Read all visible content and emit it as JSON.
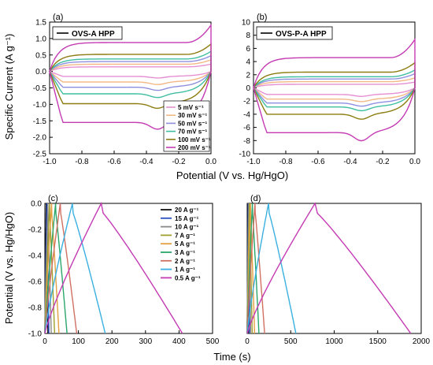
{
  "figure": {
    "shared_ylabel_top": "Specific Current (A g⁻¹)",
    "shared_xlabel_top": "Potential (V vs. Hg/HgO)",
    "shared_ylabel_bottom": "Potential (V vs. Hg/HgO)",
    "shared_xlabel_bottom": "Time (s)"
  },
  "chart_data": [
    {
      "panel": "(a)",
      "type": "line",
      "title_legend": "OVS-A HPP",
      "xlim": [
        -1.0,
        0.0
      ],
      "ylim": [
        -2.5,
        1.5
      ],
      "xticks": [
        "-1.0",
        "-0.8",
        "-0.6",
        "-0.4",
        "-0.2",
        "0.0"
      ],
      "yticks": [
        "-2.5",
        "-2.0",
        "-1.5",
        "-1.0",
        "-0.5",
        "0.0",
        "0.5",
        "1.0",
        "1.5"
      ],
      "series": [
        {
          "name": "5 mV s⁻¹",
          "color": "#e58fd2",
          "anodic": 0.14,
          "cathodic": -0.15,
          "dip": 0.05
        },
        {
          "name": "30 mV s⁻¹",
          "color": "#f2b886",
          "anodic": 0.22,
          "cathodic": -0.32,
          "dip": 0.08
        },
        {
          "name": "50 mV s⁻¹",
          "color": "#8f8fe0",
          "anodic": 0.3,
          "cathodic": -0.48,
          "dip": 0.1
        },
        {
          "name": "70 mV s⁻¹",
          "color": "#3fbfa0",
          "anodic": 0.38,
          "cathodic": -0.68,
          "dip": 0.12
        },
        {
          "name": "100 mV s⁻¹",
          "color": "#8c7d12",
          "anodic": 0.52,
          "cathodic": -0.98,
          "dip": 0.15
        },
        {
          "name": "200 mV s⁻¹",
          "color": "#c43bb3",
          "anodic": 0.88,
          "cathodic": -1.55,
          "dip": 0.22
        }
      ]
    },
    {
      "panel": "(b)",
      "type": "line",
      "title_legend": "OVS-P-A HPP",
      "xlim": [
        -1.0,
        0.0
      ],
      "ylim": [
        -10,
        10
      ],
      "xticks": [
        "-1.0",
        "-0.8",
        "-0.6",
        "-0.4",
        "-0.2",
        "0.0"
      ],
      "yticks": [
        "-10",
        "-8",
        "-6",
        "-4",
        "-2",
        "0",
        "2",
        "4",
        "6",
        "8",
        "10"
      ],
      "series": [
        {
          "name": "5 mV s⁻¹",
          "color": "#e58fd2",
          "anodic": 0.55,
          "cathodic": -1.0,
          "dip": 0.3
        },
        {
          "name": "30 mV s⁻¹",
          "color": "#f2b886",
          "anodic": 0.95,
          "cathodic": -1.7,
          "dip": 0.4
        },
        {
          "name": "50 mV s⁻¹",
          "color": "#8f8fe0",
          "anodic": 1.35,
          "cathodic": -2.3,
          "dip": 0.5
        },
        {
          "name": "70 mV s⁻¹",
          "color": "#3fbfa0",
          "anodic": 1.7,
          "cathodic": -2.9,
          "dip": 0.6
        },
        {
          "name": "100 mV s⁻¹",
          "color": "#8c7d12",
          "anodic": 2.4,
          "cathodic": -4.0,
          "dip": 0.8
        },
        {
          "name": "200 mV s⁻¹",
          "color": "#c43bb3",
          "anodic": 4.6,
          "cathodic": -6.8,
          "dip": 1.3
        }
      ]
    },
    {
      "panel": "(c)",
      "type": "line",
      "xlim": [
        0,
        500
      ],
      "ylim": [
        -1.0,
        0.0
      ],
      "xticks": [
        "0",
        "100",
        "200",
        "300",
        "400",
        "500"
      ],
      "yticks": [
        "-1.0",
        "-0.8",
        "-0.6",
        "-0.4",
        "-0.2",
        "0.0"
      ],
      "series": [
        {
          "name": "20 A g⁻¹",
          "color": "#111111",
          "t_peak": 4,
          "t_end": 9
        },
        {
          "name": "15 A g⁻¹",
          "color": "#2b4ec0",
          "t_peak": 6,
          "t_end": 12
        },
        {
          "name": "10 A g⁻¹",
          "color": "#8a8a8a",
          "t_peak": 9,
          "t_end": 19
        },
        {
          "name": "7 A g⁻¹",
          "color": "#a0a030",
          "t_peak": 14,
          "t_end": 29
        },
        {
          "name": "5 A g⁻¹",
          "color": "#e3a040",
          "t_peak": 20,
          "t_end": 42
        },
        {
          "name": "3 A g⁻¹",
          "color": "#2aa66a",
          "t_peak": 32,
          "t_end": 66
        },
        {
          "name": "2 A g⁻¹",
          "color": "#d07060",
          "t_peak": 46,
          "t_end": 95
        },
        {
          "name": "1 A g⁻¹",
          "color": "#3ab0e0",
          "t_peak": 82,
          "t_end": 180
        },
        {
          "name": "0.5 A g⁻¹",
          "color": "#c43bb3",
          "t_peak": 168,
          "t_end": 410
        }
      ]
    },
    {
      "panel": "(d)",
      "type": "line",
      "xlim": [
        0,
        2000
      ],
      "ylim": [
        -1.0,
        0.0
      ],
      "xticks": [
        "0",
        "500",
        "1000",
        "1500",
        "2000"
      ],
      "series": [
        {
          "name": "20 A g⁻¹",
          "color": "#111111",
          "t_peak": 8,
          "t_end": 18
        },
        {
          "name": "15 A g⁻¹",
          "color": "#2b4ec0",
          "t_peak": 12,
          "t_end": 26
        },
        {
          "name": "10 A g⁻¹",
          "color": "#8a8a8a",
          "t_peak": 18,
          "t_end": 40
        },
        {
          "name": "7 A g⁻¹",
          "color": "#a0a030",
          "t_peak": 26,
          "t_end": 58
        },
        {
          "name": "5 A g⁻¹",
          "color": "#e3a040",
          "t_peak": 38,
          "t_end": 85
        },
        {
          "name": "3 A g⁻¹",
          "color": "#2aa66a",
          "t_peak": 60,
          "t_end": 135
        },
        {
          "name": "2 A g⁻¹",
          "color": "#d07060",
          "t_peak": 90,
          "t_end": 200
        },
        {
          "name": "1 A g⁻¹",
          "color": "#3ab0e0",
          "t_peak": 245,
          "t_end": 560
        },
        {
          "name": "0.5 A g⁻¹",
          "color": "#c43bb3",
          "t_peak": 780,
          "t_end": 1880
        }
      ]
    }
  ]
}
